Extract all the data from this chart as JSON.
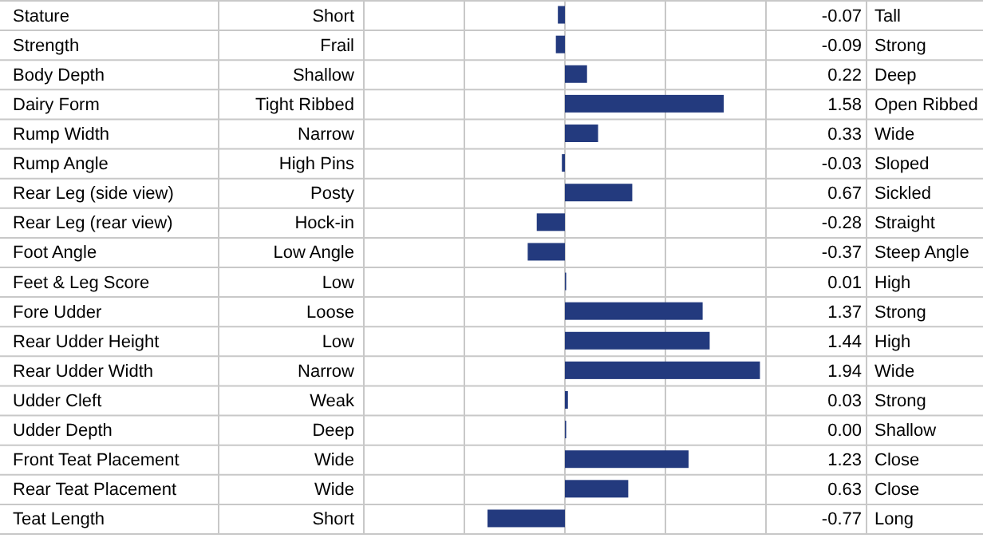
{
  "chart_data": {
    "type": "bar",
    "orientation": "horizontal",
    "categories": [
      "Stature",
      "Strength",
      "Body Depth",
      "Dairy Form",
      "Rump Width",
      "Rump Angle",
      "Rear Leg (side view)",
      "Rear Leg (rear view)",
      "Foot Angle",
      "Feet & Leg Score",
      "Fore Udder",
      "Rear Udder Height",
      "Rear Udder Width",
      "Udder Cleft",
      "Udder Depth",
      "Front Teat Placement",
      "Rear Teat Placement",
      "Teat Length"
    ],
    "values": [
      -0.07,
      -0.09,
      0.22,
      1.58,
      0.33,
      -0.03,
      0.67,
      -0.28,
      -0.37,
      0.01,
      1.37,
      1.44,
      1.94,
      0.03,
      0.0,
      1.23,
      0.63,
      -0.77
    ],
    "value_labels": [
      "-0.07",
      "-0.09",
      "0.22",
      "1.58",
      "0.33",
      "-0.03",
      "0.67",
      "-0.28",
      "-0.37",
      "0.01",
      "1.37",
      "1.44",
      "1.94",
      "0.03",
      "0.00",
      "1.23",
      "0.63",
      "-0.77"
    ],
    "color": "#233a7e",
    "xlim": [
      -2,
      2
    ],
    "xticks": [
      {
        "value": -1,
        "label": null
      },
      {
        "value": 0,
        "label": null
      },
      {
        "value": 1,
        "label": null
      }
    ],
    "tick_labels": "y",
    "grid": "x",
    "annotations": [
      "Short",
      "Frail",
      "Shallow",
      "Tight Ribbed",
      "Narrow",
      "High Pins",
      "Posty",
      "Hock-in",
      "Low Angle",
      "Low",
      "Loose",
      "Low",
      "Narrow",
      "Weak",
      "Deep",
      "Wide",
      "Wide",
      "Short",
      "Tall",
      "Strong",
      "Deep",
      "Open Ribbed",
      "Wide",
      "Sloped",
      "Sickled",
      "Straight",
      "Steep Angle",
      "High",
      "Strong",
      "High",
      "Wide",
      "Strong",
      "Shallow",
      "Close",
      "Close",
      "Long"
    ]
  }
}
